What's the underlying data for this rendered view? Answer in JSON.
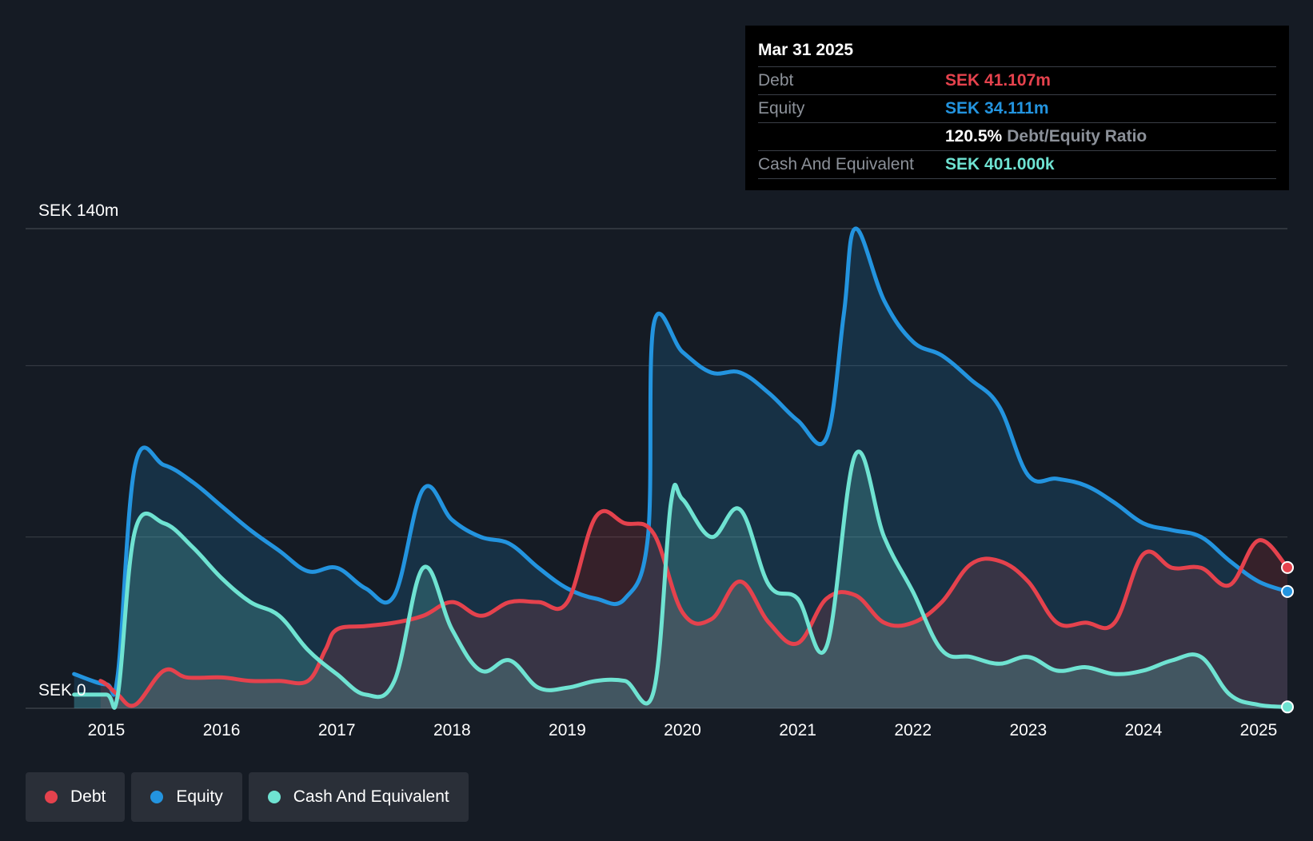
{
  "colors": {
    "background": "#151b24",
    "debt": "#e5424d",
    "equity": "#2394df",
    "cash": "#6fe3d2",
    "grid": "#3a3f47"
  },
  "tooltip": {
    "date": "Mar 31 2025",
    "rows": [
      {
        "label": "Debt",
        "value": "SEK 41.107m",
        "color": "#e5424d"
      },
      {
        "label": "Equity",
        "value": "SEK 34.111m",
        "color": "#2394df"
      },
      {
        "ratio_value": "120.5%",
        "ratio_label": "Debt/Equity Ratio"
      },
      {
        "label": "Cash And Equivalent",
        "value": "SEK 401.000k",
        "color": "#6fe3d2"
      }
    ]
  },
  "legend": [
    {
      "label": "Debt",
      "color": "#e5424d",
      "icon": "debt-dot-icon"
    },
    {
      "label": "Equity",
      "color": "#2394df",
      "icon": "equity-dot-icon"
    },
    {
      "label": "Cash And Equivalent",
      "color": "#6fe3d2",
      "icon": "cash-dot-icon"
    }
  ],
  "chart_data": {
    "type": "area",
    "title": "",
    "xlabel": "",
    "ylabel": "",
    "y_unit": "SEK m",
    "ylim": [
      0,
      140
    ],
    "y_tick_labels": [
      {
        "value": 140,
        "label": "SEK 140m"
      },
      {
        "value": 0,
        "label": "SEK 0"
      }
    ],
    "y_gridlines": [
      0,
      50,
      100,
      140
    ],
    "xlim": [
      2014.72,
      2025.25
    ],
    "x_ticks": [
      2015,
      2016,
      2017,
      2018,
      2019,
      2020,
      2021,
      2022,
      2023,
      2024,
      2025
    ],
    "x_tick_labels": [
      "2015",
      "2016",
      "2017",
      "2018",
      "2019",
      "2020",
      "2021",
      "2022",
      "2023",
      "2024",
      "2025"
    ],
    "grid": true,
    "legend_position": "bottom-left",
    "series": [
      {
        "name": "Debt",
        "color": "#e5424d",
        "x": [
          2014.95,
          2015.0,
          2015.1,
          2015.25,
          2015.5,
          2015.7,
          2016.0,
          2016.25,
          2016.5,
          2016.75,
          2016.9,
          2017.0,
          2017.25,
          2017.5,
          2017.75,
          2018.0,
          2018.25,
          2018.5,
          2018.75,
          2019.0,
          2019.25,
          2019.5,
          2019.75,
          2020.0,
          2020.25,
          2020.5,
          2020.75,
          2021.0,
          2021.25,
          2021.5,
          2021.75,
          2022.0,
          2022.25,
          2022.5,
          2022.75,
          2023.0,
          2023.25,
          2023.5,
          2023.75,
          2024.0,
          2024.25,
          2024.5,
          2024.75,
          2025.0,
          2025.25
        ],
        "y": [
          8,
          7,
          4,
          1,
          11,
          9,
          9,
          8,
          8,
          8,
          17,
          23,
          24,
          25,
          27,
          31,
          27,
          31,
          31,
          31,
          56,
          54,
          51,
          28,
          26,
          37,
          25,
          19,
          32,
          33,
          25,
          25,
          31,
          42,
          43,
          37,
          25,
          25,
          25,
          45,
          41,
          41,
          36,
          49,
          41.1
        ]
      },
      {
        "name": "Equity",
        "color": "#2394df",
        "x": [
          2014.72,
          2015.0,
          2015.1,
          2015.25,
          2015.5,
          2015.75,
          2016.0,
          2016.25,
          2016.5,
          2016.75,
          2017.0,
          2017.25,
          2017.5,
          2017.75,
          2018.0,
          2018.25,
          2018.5,
          2018.75,
          2019.0,
          2019.25,
          2019.5,
          2019.7,
          2019.75,
          2020.0,
          2020.25,
          2020.5,
          2020.75,
          2021.0,
          2021.25,
          2021.4,
          2021.5,
          2021.75,
          2022.0,
          2022.25,
          2022.5,
          2022.75,
          2023.0,
          2023.25,
          2023.5,
          2023.75,
          2024.0,
          2024.25,
          2024.5,
          2024.75,
          2025.0,
          2025.25
        ],
        "y": [
          10,
          7,
          10,
          71,
          71,
          66,
          59,
          52,
          46,
          40,
          41,
          35,
          33,
          64,
          55,
          50,
          48,
          41,
          35,
          32,
          32,
          50,
          112,
          104,
          98,
          98,
          92,
          84,
          79,
          115,
          140,
          119,
          107,
          103,
          96,
          88,
          68,
          67,
          65,
          60,
          54,
          52,
          50,
          43,
          37,
          34.1
        ]
      },
      {
        "name": "Cash And Equivalent",
        "color": "#6fe3d2",
        "x": [
          2014.72,
          2015.0,
          2015.1,
          2015.25,
          2015.5,
          2015.75,
          2016.0,
          2016.25,
          2016.5,
          2016.75,
          2017.0,
          2017.25,
          2017.5,
          2017.75,
          2018.0,
          2018.25,
          2018.5,
          2018.75,
          2019.0,
          2019.25,
          2019.5,
          2019.75,
          2019.9,
          2020.0,
          2020.25,
          2020.5,
          2020.75,
          2021.0,
          2021.25,
          2021.5,
          2021.75,
          2022.0,
          2022.25,
          2022.5,
          2022.75,
          2023.0,
          2023.25,
          2023.5,
          2023.75,
          2024.0,
          2024.25,
          2024.5,
          2024.75,
          2025.0,
          2025.25
        ],
        "y": [
          4,
          4,
          4,
          52,
          54,
          47,
          38,
          31,
          27,
          17,
          10,
          4,
          8,
          41,
          23,
          11,
          14,
          6,
          6,
          8,
          8,
          5,
          60,
          61,
          50,
          58,
          36,
          32,
          18,
          74,
          50,
          34,
          17,
          15,
          13,
          15,
          11,
          12,
          10,
          11,
          14,
          15,
          4,
          1,
          0.4
        ]
      }
    ],
    "annotations": [
      {
        "date": "Mar 31 2025",
        "Debt": "SEK 41.107m",
        "Equity": "SEK 34.111m",
        "Debt/Equity Ratio": "120.5%",
        "Cash And Equivalent": "SEK 401.000k"
      }
    ]
  }
}
